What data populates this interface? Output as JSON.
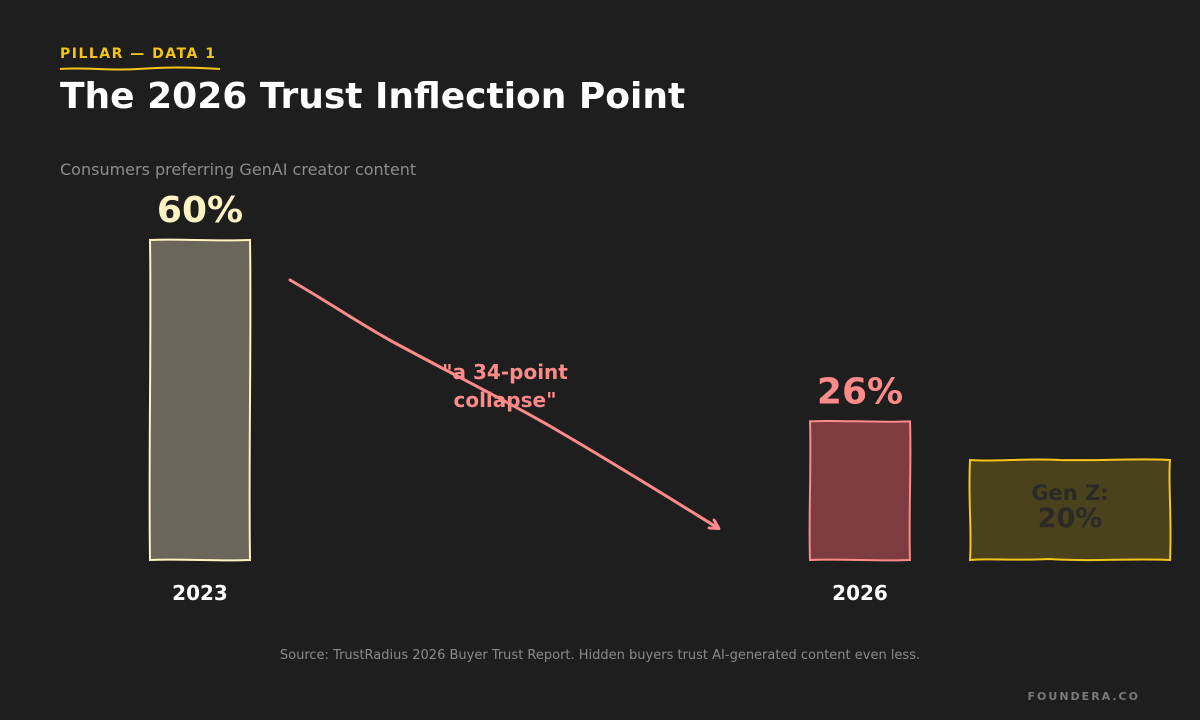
{
  "header": {
    "eyebrow": "PILLAR — DATA 1",
    "title": "The 2026 Trust Inflection Point",
    "subtitle": "Consumers preferring GenAI creator content"
  },
  "chart_data": {
    "type": "bar",
    "categories": [
      "2023",
      "2026"
    ],
    "values": [
      60,
      26
    ],
    "value_labels": [
      "60%",
      "26%"
    ],
    "ylim": [
      0,
      60
    ],
    "colors": {
      "bar_2023_fill": "#6a665a",
      "bar_2023_stroke": "#fff3c4",
      "label_2023": "#fff3c4",
      "bar_2026_fill": "#7d3c3f",
      "bar_2026_stroke": "#ff8a8a",
      "label_2026": "#ff8a8a",
      "genz_fill": "#4a411d",
      "genz_stroke": "#f5c518",
      "genz_text": "#2b2a25",
      "arrow": "#ff8a8a",
      "category_label": "#ffffff"
    },
    "annotation": {
      "line1": "\"a 34-point",
      "line2": "collapse\""
    },
    "callout": {
      "label": "Gen Z:",
      "value": 20,
      "value_label": "20%"
    }
  },
  "footer": {
    "source": "Source: TrustRadius 2026 Buyer Trust Report. Hidden buyers trust AI-generated content even less.",
    "brand": "FOUNDERA.CO"
  }
}
